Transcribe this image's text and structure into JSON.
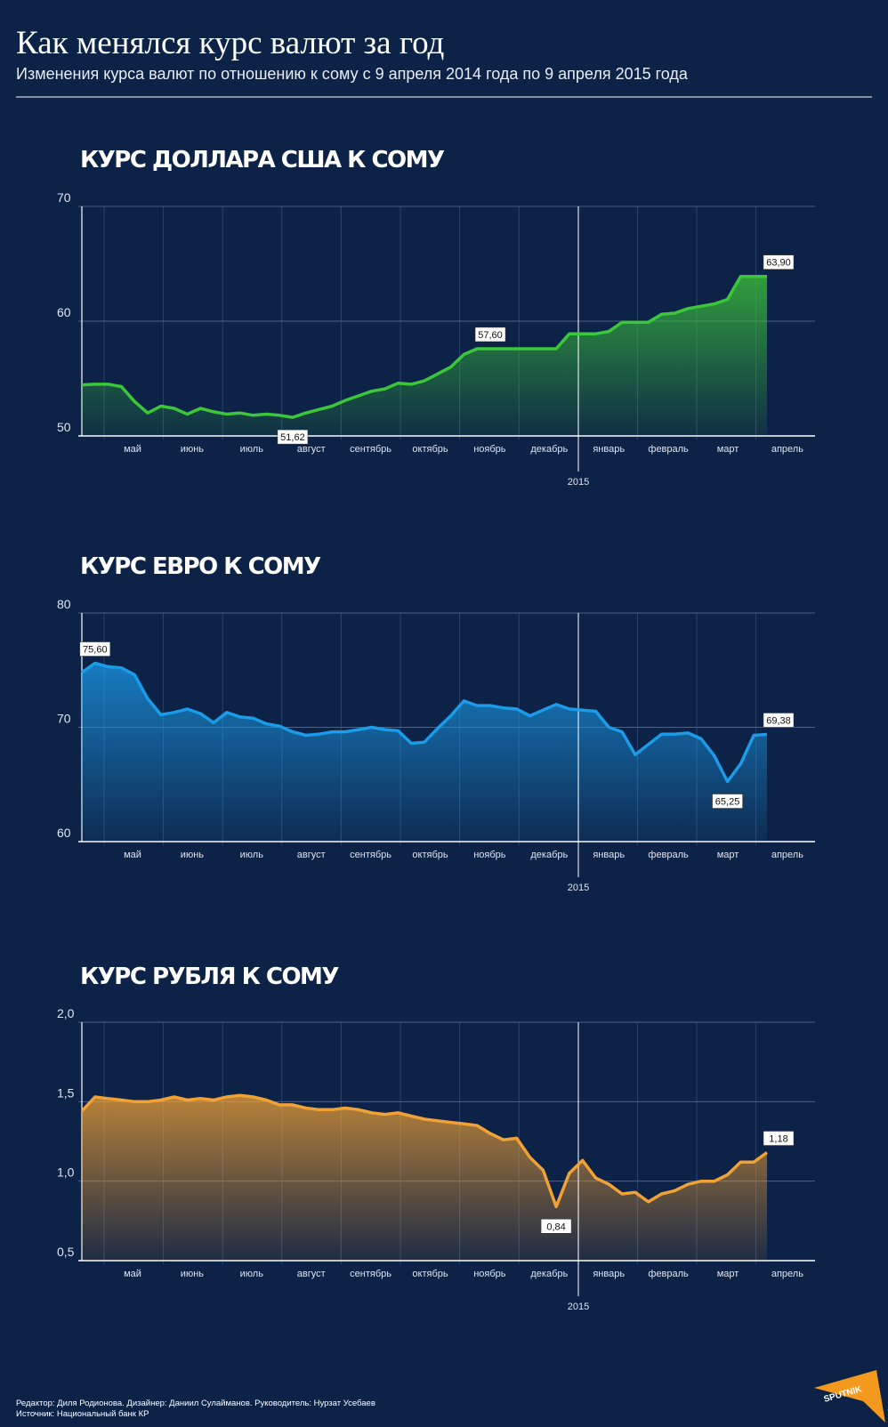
{
  "header": {
    "title": "Как менялся курс валют за год",
    "subtitle": "Изменения курса валют по отношению к сому с 9 апреля 2014 года по 9 апреля 2015 года"
  },
  "chart_data": [
    {
      "type": "line",
      "title": "КУРС ДОЛЛАРА США К СОМУ",
      "color": "#3cc63a",
      "x_labels": [
        "май",
        "июнь",
        "июль",
        "август",
        "сентябрь",
        "октябрь",
        "ноябрь",
        "декабрь",
        "январь",
        "февраль",
        "март",
        "апрель"
      ],
      "year_label": "2015",
      "values": [
        54.45,
        54.5,
        54.5,
        54.3,
        53.0,
        52.0,
        52.6,
        52.4,
        51.9,
        52.4,
        52.1,
        51.9,
        52.0,
        51.8,
        51.9,
        51.8,
        51.62,
        52.0,
        52.3,
        52.6,
        53.1,
        53.5,
        53.9,
        54.1,
        54.6,
        54.5,
        54.8,
        55.4,
        56.0,
        57.1,
        57.6,
        57.6,
        57.6,
        57.6,
        57.6,
        57.6,
        57.6,
        58.9,
        58.9,
        58.9,
        59.1,
        59.9,
        59.9,
        59.9,
        60.6,
        60.7,
        61.1,
        61.3,
        61.5,
        61.9,
        63.9,
        63.9,
        63.9
      ],
      "value_labels": [
        null,
        null,
        null,
        null,
        null,
        null,
        null,
        null,
        null,
        null,
        null,
        null,
        null,
        null,
        null,
        null,
        "51,62",
        null,
        null,
        null,
        null,
        null,
        null,
        null,
        null,
        null,
        null,
        null,
        null,
        null,
        null,
        "57,60",
        null,
        null,
        null,
        null,
        null,
        null,
        null,
        null,
        null,
        null,
        null,
        null,
        null,
        null,
        null,
        null,
        null,
        null,
        null,
        null,
        "63,90"
      ],
      "ylim": [
        50,
        70
      ],
      "yticks": [
        50,
        60,
        70
      ],
      "grid": true
    },
    {
      "type": "line",
      "title": "КУРС ЕВРО К СОМУ",
      "color": "#1b9be8",
      "x_labels": [
        "май",
        "июнь",
        "июль",
        "август",
        "сентябрь",
        "октябрь",
        "ноябрь",
        "декабрь",
        "январь",
        "февраль",
        "март",
        "апрель"
      ],
      "year_label": "2015",
      "values": [
        74.8,
        75.6,
        75.3,
        75.2,
        74.6,
        72.5,
        71.1,
        71.3,
        71.6,
        71.2,
        70.4,
        71.3,
        70.9,
        70.8,
        70.3,
        70.1,
        69.6,
        69.3,
        69.4,
        69.6,
        69.6,
        69.8,
        70.0,
        69.8,
        69.7,
        68.6,
        68.7,
        69.9,
        71.0,
        72.3,
        71.9,
        71.9,
        71.7,
        71.6,
        71.0,
        71.5,
        72.0,
        71.6,
        71.5,
        71.4,
        70.0,
        69.6,
        67.6,
        68.5,
        69.4,
        69.4,
        69.5,
        69.0,
        67.5,
        65.25,
        66.8,
        69.3,
        69.38
      ],
      "value_labels": [
        null,
        "75,60",
        null,
        null,
        null,
        null,
        null,
        null,
        null,
        null,
        null,
        null,
        null,
        null,
        null,
        null,
        null,
        null,
        null,
        null,
        null,
        null,
        null,
        null,
        null,
        null,
        null,
        null,
        null,
        null,
        null,
        null,
        null,
        null,
        null,
        null,
        null,
        null,
        null,
        null,
        null,
        null,
        null,
        null,
        null,
        null,
        null,
        null,
        null,
        "65,25",
        null,
        null,
        "69,38"
      ],
      "ylim": [
        60,
        80
      ],
      "yticks": [
        60,
        70,
        80
      ],
      "grid": true
    },
    {
      "type": "line",
      "title": "КУРС РУБЛЯ К СОМУ",
      "color": "#f2a234",
      "x_labels": [
        "май",
        "июнь",
        "июль",
        "август",
        "сентябрь",
        "октябрь",
        "ноябрь",
        "декабрь",
        "январь",
        "февраль",
        "март",
        "апрель"
      ],
      "year_label": "2015",
      "values": [
        1.44,
        1.53,
        1.52,
        1.51,
        1.5,
        1.5,
        1.51,
        1.53,
        1.51,
        1.52,
        1.51,
        1.53,
        1.54,
        1.53,
        1.51,
        1.48,
        1.48,
        1.46,
        1.45,
        1.45,
        1.46,
        1.45,
        1.43,
        1.42,
        1.43,
        1.41,
        1.39,
        1.38,
        1.37,
        1.36,
        1.35,
        1.3,
        1.26,
        1.27,
        1.15,
        1.07,
        0.84,
        1.05,
        1.13,
        1.02,
        0.98,
        0.92,
        0.93,
        0.87,
        0.92,
        0.94,
        0.98,
        1.0,
        1.0,
        1.04,
        1.12,
        1.12,
        1.18
      ],
      "value_labels": [
        null,
        null,
        null,
        null,
        null,
        null,
        null,
        null,
        null,
        null,
        null,
        null,
        null,
        null,
        null,
        null,
        null,
        null,
        null,
        null,
        null,
        null,
        null,
        null,
        null,
        null,
        null,
        null,
        null,
        null,
        null,
        null,
        null,
        null,
        null,
        null,
        "0,84",
        null,
        null,
        null,
        null,
        null,
        null,
        null,
        null,
        null,
        null,
        null,
        null,
        null,
        null,
        null,
        "1,18"
      ],
      "ylim": [
        0.5,
        2.0
      ],
      "yticks": [
        {
          "value": 0.5,
          "label": "0,5"
        },
        {
          "value": 1.0,
          "label": "1,0"
        },
        {
          "value": 1.5,
          "label": "1,5"
        },
        {
          "value": 2.0,
          "label": "2,0"
        }
      ],
      "grid": true
    }
  ],
  "footer": {
    "credits": "Редактор: Диля Родионова. Дизайнер: Даниил Сулайманов. Руководитель: Нурзат Усебаев",
    "source": "Источник: Национальный банк КР",
    "logo": "SPUTNIK"
  }
}
